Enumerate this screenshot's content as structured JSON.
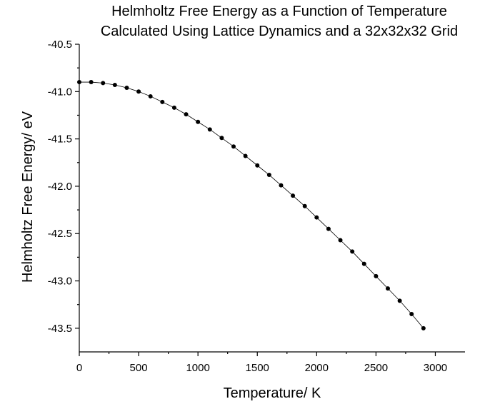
{
  "chart_data": {
    "type": "line",
    "title": "Helmholtz Free Energy as a Function of Temperature",
    "subtitle": "Calculated Using Lattice Dynamics and a 32x32x32 Grid",
    "xlabel": "Temperature/ K",
    "ylabel": "Helmholtz Free Energy/ eV",
    "xlim": [
      0,
      3250
    ],
    "ylim": [
      -43.75,
      -40.5
    ],
    "xticks": [
      0,
      500,
      1000,
      1500,
      2000,
      2500,
      3000
    ],
    "xtick_labels": [
      "0",
      "500",
      "1000",
      "1500",
      "2000",
      "2500",
      "3000"
    ],
    "yticks": [
      -40.5,
      -41.0,
      -41.5,
      -42.0,
      -42.5,
      -43.0,
      -43.5
    ],
    "ytick_labels": [
      "-40.5",
      "-41.0",
      "-41.5",
      "-42.0",
      "-42.5",
      "-43.0",
      "-43.5"
    ],
    "grid": false,
    "legend": "none",
    "series": [
      {
        "name": "Helmholtz Free Energy",
        "marker": "circle",
        "line_style": "solid",
        "x": [
          0,
          100,
          200,
          300,
          400,
          500,
          600,
          700,
          800,
          900,
          1000,
          1100,
          1200,
          1300,
          1400,
          1500,
          1600,
          1700,
          1800,
          1900,
          2000,
          2100,
          2200,
          2300,
          2400,
          2500,
          2600,
          2700,
          2800,
          2900
        ],
        "y": [
          -40.9,
          -40.9,
          -40.91,
          -40.93,
          -40.96,
          -41.0,
          -41.05,
          -41.11,
          -41.17,
          -41.24,
          -41.32,
          -41.4,
          -41.49,
          -41.58,
          -41.68,
          -41.78,
          -41.88,
          -41.99,
          -42.1,
          -42.21,
          -42.33,
          -42.45,
          -42.57,
          -42.69,
          -42.82,
          -42.95,
          -43.08,
          -43.21,
          -43.35,
          -43.5
        ]
      }
    ]
  }
}
